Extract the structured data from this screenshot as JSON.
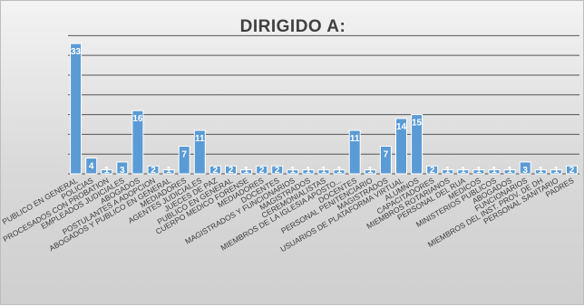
{
  "chart_data": {
    "type": "bar",
    "title": "DIRIGIDO A:",
    "categories": [
      "PUBLICO EN GENERAL",
      "POLICIAS",
      "PROCESADOS CON PROBATION",
      "EMPLEADOS JUDICIALES",
      "ABOGADOS",
      "POSTULANTES A ADOPCION",
      "ABOGADOS Y PUBLICO EN GENERAL",
      "MEDIADORES",
      "AGENTES JUDICIALES",
      "JUECES DE PAZ",
      "PUBLICO EN GENERAL",
      "CUERPO MEDICO FORENSE",
      "MEDIADORES",
      "DOCENTES",
      "MAGISTRADOS Y FUNCIONARIOS",
      "MAGISTRADOS",
      "CEREMONIALISTAS",
      "MIEMBROS DE LA IGLESIA APOSTO...",
      "DOCENTES",
      "PERSONAL PENITENCIARIO",
      "MAGISTRADOS",
      "USUARIOS DE PLATAFORMA VIRTUAL",
      "ALUMNOS",
      "CAPACITADORES",
      "MIEMBROS ROTARIANOS",
      "PERSONAL DEL RUA",
      "MEDICOS",
      "MINISTERIOS PUBLICOS",
      "ABOGADOS",
      "FUNCIONARIOS",
      "MIEMBROS DEL INST. PROV. DE DH",
      "PERSONAL SANITARIO",
      "PADRES"
    ],
    "values": [
      33,
      4,
      1,
      3,
      16,
      2,
      1,
      7,
      11,
      2,
      2,
      1,
      2,
      2,
      1,
      1,
      1,
      1,
      11,
      1,
      7,
      14,
      15,
      2,
      1,
      1,
      1,
      1,
      1,
      3,
      1,
      1,
      2
    ],
    "ylim": [
      0,
      36
    ],
    "grid": true,
    "colors": {
      "bar": "#5b9bd5",
      "label": "#ffffff",
      "grid": "#555555"
    }
  }
}
